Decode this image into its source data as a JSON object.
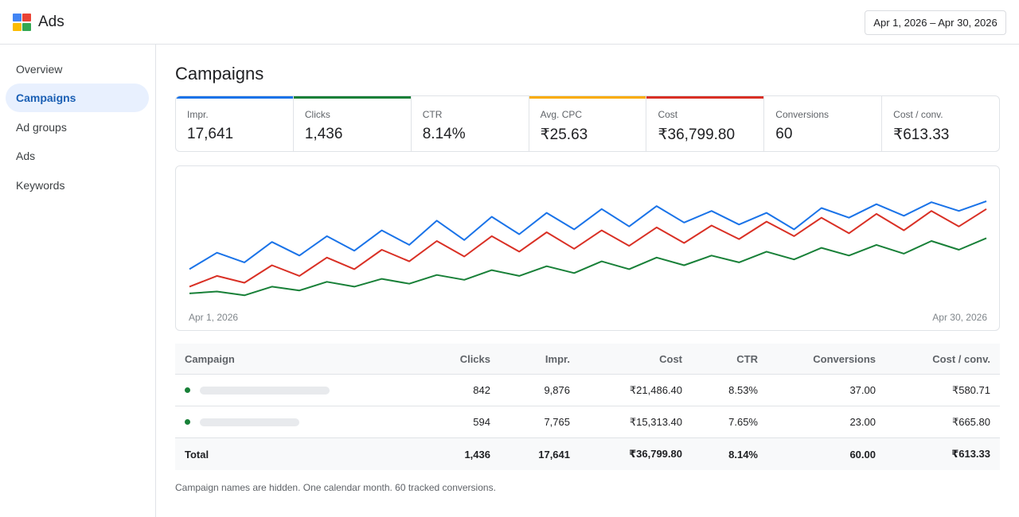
{
  "app": {
    "title": "Ads"
  },
  "brand_colors": {
    "blue": "#4285f4",
    "red": "#ea4335",
    "yellow": "#fbbc04",
    "green": "#34a853"
  },
  "date_range": "Apr 1, 2026 – Apr 30, 2026",
  "nav": [
    {
      "label": "Overview",
      "active": false
    },
    {
      "label": "Campaigns",
      "active": true
    },
    {
      "label": "Ad groups",
      "active": false
    },
    {
      "label": "Ads",
      "active": false
    },
    {
      "label": "Keywords",
      "active": false
    }
  ],
  "page_title": "Campaigns",
  "metrics": [
    {
      "label": "Impr.",
      "value": "17,641",
      "accent": "#1a73e8"
    },
    {
      "label": "Clicks",
      "value": "1,436",
      "accent": "#188038"
    },
    {
      "label": "CTR",
      "value": "8.14%",
      "accent": ""
    },
    {
      "label": "Avg. CPC",
      "value": "₹25.63",
      "accent": "#f9ab00"
    },
    {
      "label": "Cost",
      "value": "₹36,799.80",
      "accent": "#d93025"
    },
    {
      "label": "Conversions",
      "value": "60",
      "accent": ""
    },
    {
      "label": "Cost / conv.",
      "value": "₹613.33",
      "accent": ""
    }
  ],
  "chart_data": {
    "type": "line",
    "x_start_label": "Apr 1, 2026",
    "x_end_label": "Apr 30, 2026",
    "series_colors": [
      "#1a73e8",
      "#d93025",
      "#188038"
    ],
    "series": [
      {
        "values": [
          30,
          47,
          37,
          58,
          44,
          64,
          49,
          70,
          55,
          80,
          60,
          84,
          66,
          88,
          71,
          92,
          74,
          95,
          78,
          90,
          76,
          88,
          71,
          93,
          83,
          97,
          85,
          99,
          90,
          100
        ]
      },
      {
        "values": [
          12,
          23,
          16,
          34,
          23,
          42,
          30,
          50,
          38,
          59,
          43,
          64,
          48,
          68,
          51,
          70,
          54,
          73,
          57,
          75,
          61,
          79,
          64,
          83,
          67,
          87,
          70,
          90,
          74,
          92
        ]
      },
      {
        "values": [
          5,
          7,
          3,
          12,
          8,
          17,
          12,
          20,
          15,
          24,
          19,
          29,
          23,
          33,
          26,
          38,
          30,
          42,
          34,
          44,
          37,
          48,
          40,
          52,
          44,
          55,
          46,
          59,
          50,
          62
        ]
      }
    ],
    "note": "values are relative trend levels read from the unlabeled chart (0–100 scale)"
  },
  "table": {
    "columns": [
      "Campaign",
      "Clicks",
      "Impr.",
      "Cost",
      "CTR",
      "Conversions",
      "Cost / conv."
    ],
    "rows": [
      {
        "status": "enabled",
        "clicks": "842",
        "impr": "9,876",
        "cost": "₹21,486.40",
        "ctr": "8.53%",
        "conversions": "37.00",
        "cost_conv": "₹580.71"
      },
      {
        "status": "enabled",
        "clicks": "594",
        "impr": "7,765",
        "cost": "₹15,313.40",
        "ctr": "7.65%",
        "conversions": "23.00",
        "cost_conv": "₹665.80"
      }
    ],
    "total": {
      "label": "Total",
      "clicks": "1,436",
      "impr": "17,641",
      "cost": "₹36,799.80",
      "ctr": "8.14%",
      "conversions": "60.00",
      "cost_conv": "₹613.33"
    }
  },
  "footnote": "Campaign names are hidden. One calendar month. 60 tracked conversions."
}
